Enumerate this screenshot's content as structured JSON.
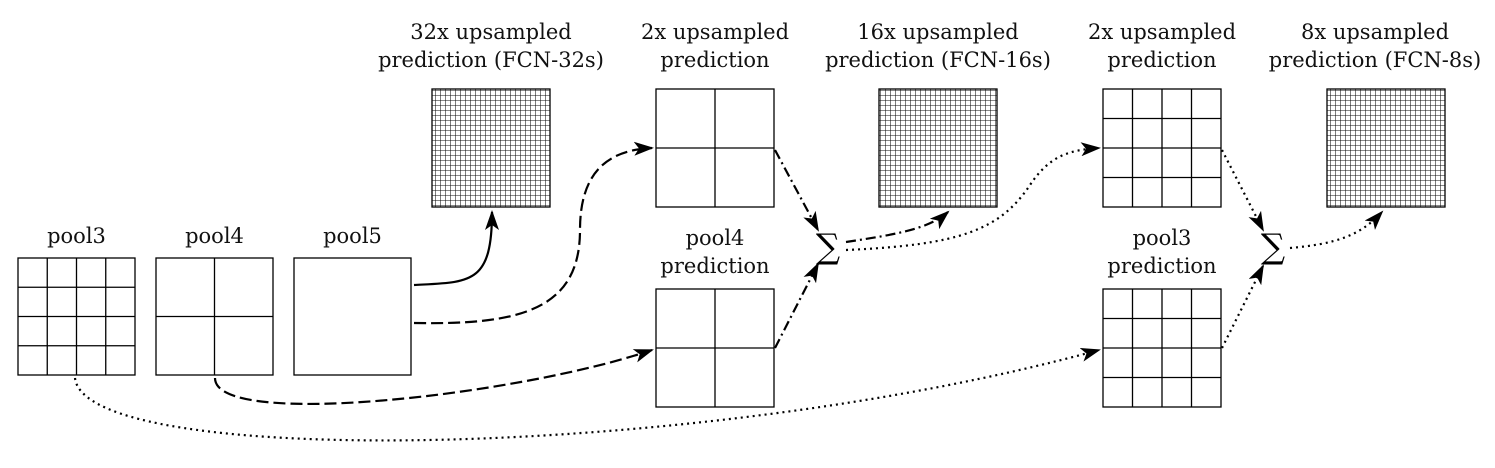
{
  "labels": {
    "pool3": "pool3",
    "pool4": "pool4",
    "pool5": "pool5",
    "fcn32": {
      "line1": "32x upsampled",
      "line2": "prediction (FCN-32s)"
    },
    "up2a": {
      "line1": "2x upsampled",
      "line2": "prediction"
    },
    "pool4pred": {
      "line1": "pool4",
      "line2": "prediction"
    },
    "fcn16": {
      "line1": "16x upsampled",
      "line2": "prediction (FCN-16s)"
    },
    "up2b": {
      "line1": "2x upsampled",
      "line2": "prediction"
    },
    "pool3pred": {
      "line1": "pool3",
      "line2": "prediction"
    },
    "fcn8": {
      "line1": "8x upsampled",
      "line2": "prediction (FCN-8s)"
    }
  },
  "symbols": {
    "sum": "∑"
  }
}
